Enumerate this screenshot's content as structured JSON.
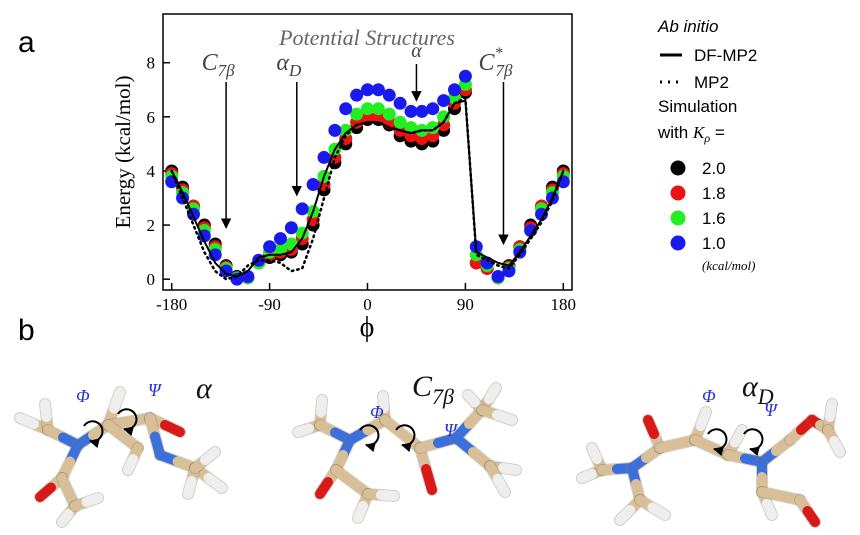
{
  "panel_a_label": "a",
  "panel_b_label": "b",
  "chart_data": {
    "type": "scatter",
    "title": "Potential Structures",
    "x_label": "ϕ",
    "y_label": "Energy (kcal/mol)",
    "xlim": [
      -188,
      188
    ],
    "ylim": [
      -0.4,
      9.8
    ],
    "xticks": [
      -180,
      -90,
      0,
      90,
      180
    ],
    "yticks": [
      0,
      2,
      4,
      6,
      8
    ],
    "x": [
      -180,
      -170,
      -160,
      -150,
      -140,
      -130,
      -120,
      -110,
      -100,
      -90,
      -80,
      -70,
      -60,
      -50,
      -40,
      -30,
      -20,
      -10,
      0,
      10,
      20,
      30,
      40,
      50,
      60,
      70,
      80,
      90,
      100,
      110,
      120,
      130,
      140,
      150,
      160,
      170,
      180
    ],
    "legend_title_1": "Ab initio",
    "legend_title_2": {
      "line1": "Simulation",
      "line2": "with",
      "k": "K",
      "k_sub": "ρ",
      "eq": "="
    },
    "legend_unit": "(kcal/mol)",
    "series": [
      {
        "name": "DF-MP2",
        "kind": "line",
        "dash": "solid",
        "color": "#000000",
        "values": [
          4.0,
          3.2,
          2.3,
          1.4,
          0.6,
          0.2,
          0.1,
          0.3,
          0.8,
          0.9,
          0.9,
          1.0,
          1.5,
          2.5,
          3.8,
          4.8,
          5.4,
          5.7,
          5.8,
          5.8,
          5.6,
          5.5,
          5.4,
          5.5,
          5.5,
          5.8,
          6.5,
          6.6,
          1.0,
          0.8,
          0.6,
          0.5,
          1.0,
          1.6,
          2.2,
          3.0,
          4.0
        ]
      },
      {
        "name": "MP2",
        "kind": "line",
        "dash": "dotted",
        "color": "#000000",
        "values": [
          4.0,
          3.0,
          2.0,
          1.0,
          0.3,
          0.0,
          0.1,
          0.5,
          0.7,
          0.7,
          0.6,
          0.3,
          0.4,
          1.5,
          3.0,
          4.5,
          5.3,
          5.7,
          5.8,
          5.8,
          5.6,
          5.5,
          5.4,
          5.5,
          5.5,
          5.8,
          6.5,
          6.7,
          0.9,
          0.7,
          0.5,
          0.4,
          0.9,
          1.5,
          2.1,
          2.9,
          4.0
        ]
      },
      {
        "name": "2.0",
        "kind": "points",
        "color": "#000000",
        "values": [
          4.0,
          3.4,
          2.7,
          2.0,
          1.3,
          0.5,
          0.1,
          0.05,
          0.6,
          0.8,
          0.9,
          1.0,
          1.3,
          2.0,
          3.3,
          4.3,
          5.0,
          5.6,
          5.9,
          5.9,
          5.7,
          5.3,
          5.1,
          5.0,
          5.1,
          5.5,
          6.3,
          6.9,
          0.6,
          0.4,
          0.05,
          0.5,
          1.2,
          2.0,
          2.7,
          3.4,
          4.0
        ]
      },
      {
        "name": "1.8",
        "kind": "points",
        "color": "#ee1111",
        "values": [
          3.9,
          3.3,
          2.7,
          1.9,
          1.2,
          0.45,
          0.05,
          0.05,
          0.6,
          0.9,
          1.0,
          1.1,
          1.5,
          2.2,
          3.5,
          4.5,
          5.2,
          5.8,
          6.0,
          6.0,
          5.8,
          5.5,
          5.3,
          5.2,
          5.3,
          5.7,
          6.5,
          7.0,
          0.6,
          0.4,
          0.05,
          0.45,
          1.2,
          1.9,
          2.7,
          3.3,
          3.9
        ]
      },
      {
        "name": "1.6",
        "kind": "points",
        "color": "#22ee22",
        "values": [
          3.8,
          3.2,
          2.6,
          1.8,
          1.1,
          0.4,
          0.05,
          0.05,
          0.6,
          1.0,
          1.1,
          1.3,
          1.7,
          2.5,
          3.8,
          4.8,
          5.5,
          6.1,
          6.3,
          6.3,
          6.1,
          5.8,
          5.6,
          5.5,
          5.6,
          6.0,
          6.7,
          7.2,
          0.9,
          0.5,
          0.05,
          0.4,
          1.1,
          1.8,
          2.6,
          3.2,
          3.8
        ]
      },
      {
        "name": "1.0",
        "kind": "points",
        "color": "#1a1aee",
        "values": [
          3.6,
          3.0,
          2.4,
          1.6,
          0.9,
          0.3,
          0.0,
          0.1,
          0.7,
          1.2,
          1.5,
          1.9,
          2.6,
          3.5,
          4.5,
          5.5,
          6.3,
          6.8,
          7.0,
          7.0,
          6.8,
          6.5,
          6.2,
          6.2,
          6.3,
          6.6,
          7.0,
          7.5,
          1.2,
          0.6,
          0.1,
          0.3,
          1.0,
          1.8,
          2.4,
          3.0,
          3.6
        ]
      }
    ],
    "annotations": [
      {
        "text": "C",
        "sub": "7β",
        "sup": null,
        "x": -130,
        "y": 1.9
      },
      {
        "text": "α",
        "sub": "D",
        "sup": null,
        "x": -65,
        "y": 3.1
      },
      {
        "text": "α",
        "sub": null,
        "sup": null,
        "x": 45,
        "y": 6.6
      },
      {
        "text": "C",
        "sub": "7β",
        "sup": "*",
        "x": 125,
        "y": 1.3
      }
    ]
  },
  "structures": [
    {
      "label": "α",
      "label_sub": null,
      "phi": "Φ",
      "psi": "Ψ"
    },
    {
      "label": "C",
      "label_sub": "7β",
      "phi": "Φ",
      "psi": "Ψ"
    },
    {
      "label": "α",
      "label_sub": "D",
      "phi": "Φ",
      "psi": "Ψ"
    }
  ]
}
